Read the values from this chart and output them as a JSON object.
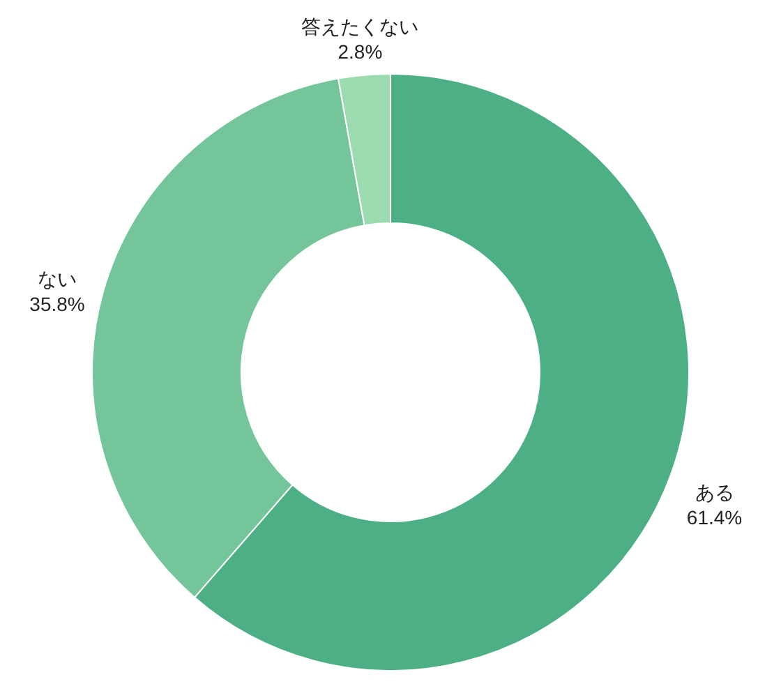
{
  "chart_data": {
    "type": "donut",
    "categories": [
      "ある",
      "ない",
      "答えたくない"
    ],
    "values": [
      61.4,
      35.8,
      2.8
    ],
    "value_labels": [
      "61.4%",
      "35.8%",
      "2.8%"
    ],
    "colors": [
      "#4caf86",
      "#74c59a",
      "#9cdbb0"
    ],
    "legend": false
  }
}
